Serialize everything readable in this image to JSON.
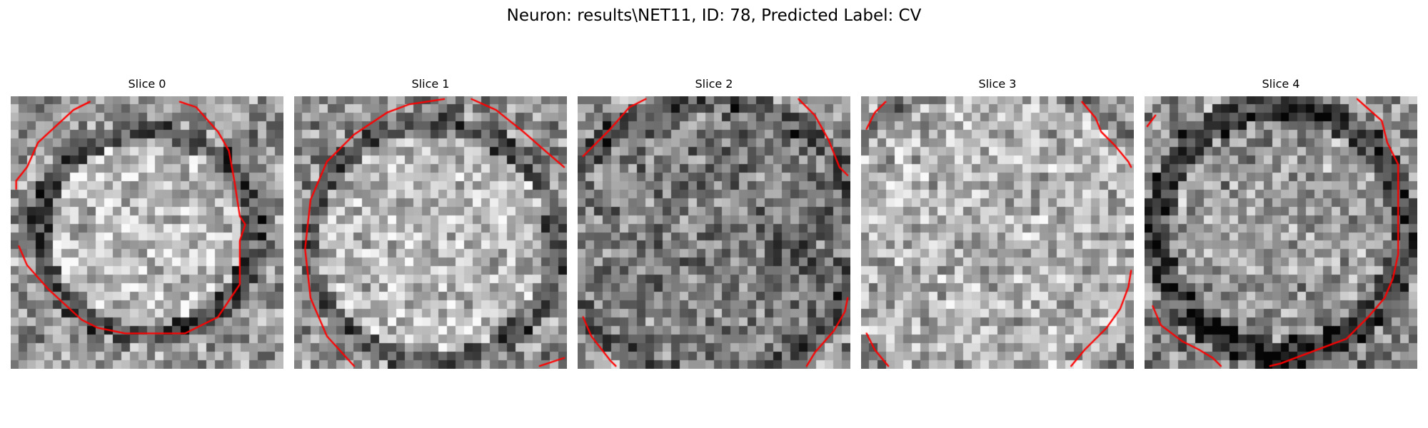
{
  "figure": {
    "title": "Neuron: results\\NET11, ID: 78, Predicted Label: CV"
  },
  "style": {
    "contour_color": "#ff0000",
    "background_color": "#ffffff",
    "colormap": "gray"
  },
  "slices": [
    {
      "title": "Slice 0"
    },
    {
      "title": "Slice 1"
    },
    {
      "title": "Slice 2"
    },
    {
      "title": "Slice 3"
    },
    {
      "title": "Slice 4"
    }
  ]
}
